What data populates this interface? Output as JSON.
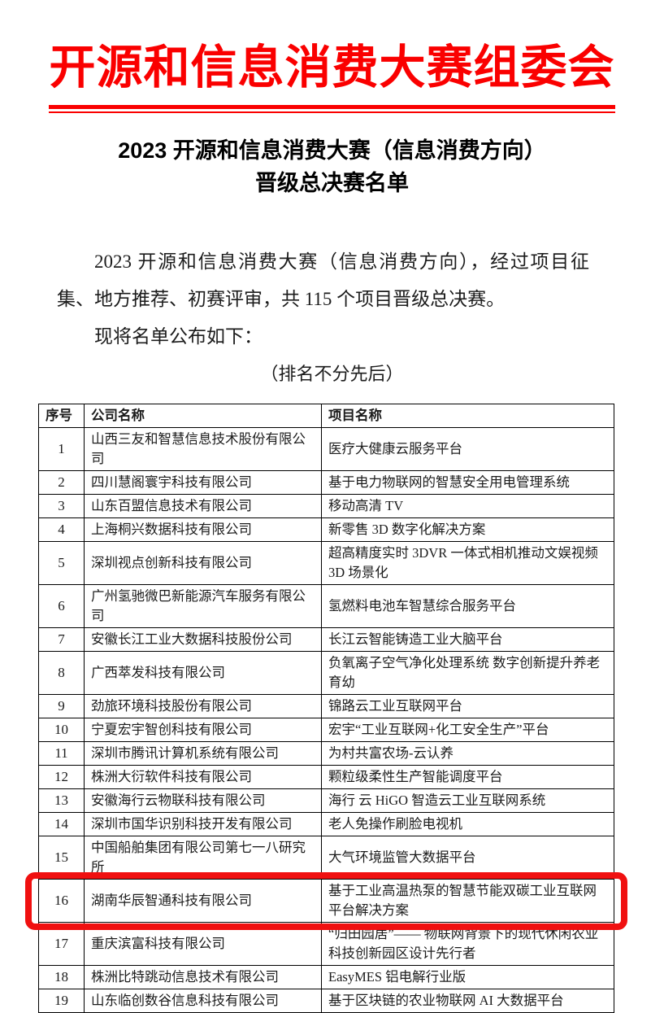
{
  "theme": {
    "accent_red": "#fa0000",
    "highlight_red": "#f01010",
    "text_color": "#1c1c1c"
  },
  "letterhead": {
    "title": "开源和信息消费大赛组委会"
  },
  "doc_title": {
    "line1": "2023 开源和信息消费大赛（信息消费方向）",
    "line2": "晋级总决赛名单"
  },
  "intro": {
    "paragraph": "2023 开源和信息消费大赛（信息消费方向），经过项目征集、地方推荐、初赛评审，共 115 个项目晋级总决赛。",
    "announce": "现将名单公布如下：",
    "note": "（排名不分先后）"
  },
  "table": {
    "headers": [
      "序号",
      "公司名称",
      "项目名称"
    ],
    "rows": [
      {
        "no": "1",
        "company": "山西三友和智慧信息技术股份有限公司",
        "project": "医疗大健康云服务平台"
      },
      {
        "no": "2",
        "company": "四川慧阁寰宇科技有限公司",
        "project": "基于电力物联网的智慧安全用电管理系统"
      },
      {
        "no": "3",
        "company": "山东百盟信息技术有限公司",
        "project": "移动高清 TV"
      },
      {
        "no": "4",
        "company": "上海桐兴数据科技有限公司",
        "project": "新零售 3D 数字化解决方案"
      },
      {
        "no": "5",
        "company": "深圳视点创新科技有限公司",
        "project": "超高精度实时 3DVR 一体式相机推动文娱视频 3D 场景化"
      },
      {
        "no": "6",
        "company": "广州氢驰微巴新能源汽车服务有限公司",
        "project": "氢燃料电池车智慧综合服务平台"
      },
      {
        "no": "7",
        "company": "安徽长江工业大数据科技股份公司",
        "project": "长江云智能铸造工业大脑平台"
      },
      {
        "no": "8",
        "company": "广西萃发科技有限公司",
        "project": "负氧离子空气净化处理系统 数字创新提升养老育幼"
      },
      {
        "no": "9",
        "company": "劲旅环境科技股份有限公司",
        "project": "锦路云工业互联网平台"
      },
      {
        "no": "10",
        "company": "宁夏宏宇智创科技有限公司",
        "project": "宏宇“工业互联网+化工安全生产”平台"
      },
      {
        "no": "11",
        "company": "深圳市腾讯计算机系统有限公司",
        "project": "为村共富农场-云认养"
      },
      {
        "no": "12",
        "company": "株洲大衍软件科技有限公司",
        "project": "颗粒级柔性生产智能调度平台"
      },
      {
        "no": "13",
        "company": "安徽海行云物联科技有限公司",
        "project": "海行 云 HiGO 智造云工业互联网系统"
      },
      {
        "no": "14",
        "company": "深圳市国华识别科技开发有限公司",
        "project": "老人免操作刷脸电视机"
      },
      {
        "no": "15",
        "company": "中国船舶集团有限公司第七一八研究所",
        "project": "大气环境监管大数据平台"
      },
      {
        "no": "16",
        "company": "湖南华辰智通科技有限公司",
        "project": "基于工业高温热泵的智慧节能双碳工业互联网平台解决方案"
      },
      {
        "no": "17",
        "company": "重庆滨富科技有限公司",
        "project": "“归田园居”—— 物联网背景下的现代休闲农业科技创新园区设计先行者"
      },
      {
        "no": "18",
        "company": "株洲比特跳动信息技术有限公司",
        "project": "EasyMES 铝电解行业版"
      },
      {
        "no": "19",
        "company": "山东临创数谷信息科技有限公司",
        "project": "基于区块链的农业物联网 AI 大数据平台"
      }
    ]
  },
  "highlight": {
    "row_no": "16"
  }
}
